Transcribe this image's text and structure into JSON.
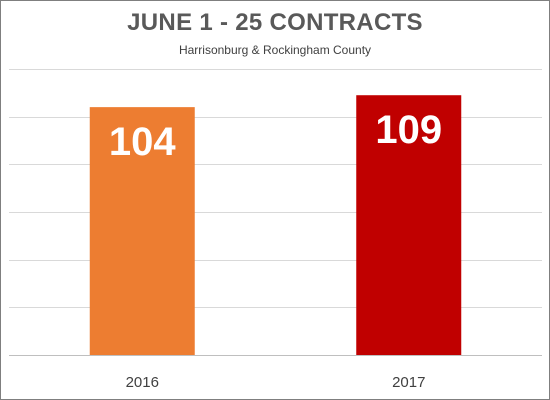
{
  "chart_data": {
    "type": "bar",
    "title": "JUNE 1 - 25 CONTRACTS",
    "subtitle": "Harrisonburg & Rockingham County",
    "categories": [
      "2016",
      "2017"
    ],
    "values": [
      104,
      109
    ],
    "colors": [
      "#ED7D31",
      "#C00000"
    ],
    "data_label_color": "#FFFFFF",
    "gridline_color": "#D9D9D9",
    "grid": true,
    "ylim": [
      0,
      120
    ],
    "xlabel": "",
    "ylabel": ""
  }
}
